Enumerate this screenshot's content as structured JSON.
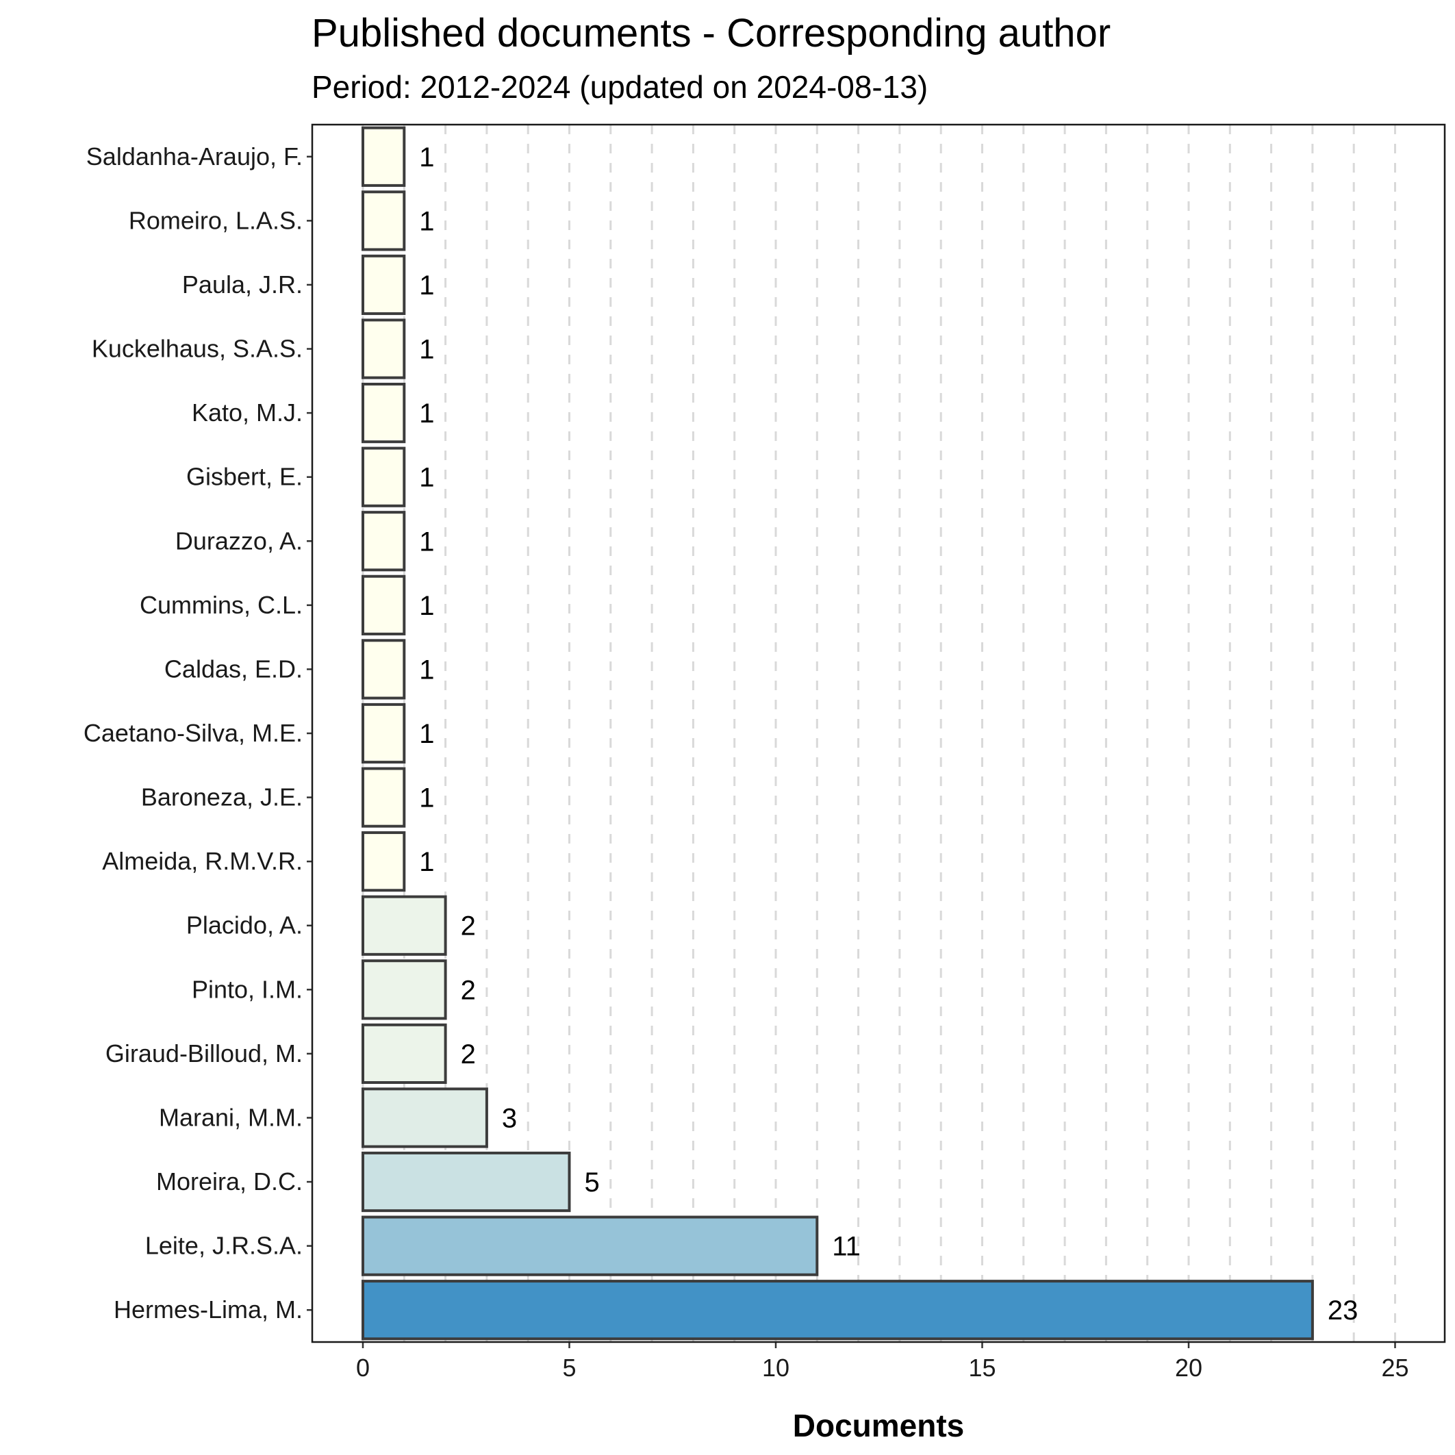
{
  "chart_data": {
    "type": "bar",
    "orientation": "horizontal",
    "title": "Published documents - Corresponding author",
    "subtitle": "Period: 2012-2024 (updated on 2024-08-13)",
    "xlabel": "Documents",
    "ylabel": "",
    "xlim": [
      -1.2,
      26.2
    ],
    "x_ticks": [
      0,
      5,
      10,
      15,
      20,
      25
    ],
    "grid": "vertical dashed at every integer",
    "categories": [
      "Saldanha-Araujo, F.",
      "Romeiro, L.A.S.",
      "Paula, J.R.",
      "Kuckelhaus, S.A.S.",
      "Kato, M.J.",
      "Gisbert, E.",
      "Durazzo, A.",
      "Cummins, C.L.",
      "Caldas, E.D.",
      "Caetano-Silva, M.E.",
      "Baroneza, J.E.",
      "Almeida, R.M.V.R.",
      "Placido, A.",
      "Pinto, I.M.",
      "Giraud-Billoud, M.",
      "Marani, M.M.",
      "Moreira, D.C.",
      "Leite, J.R.S.A.",
      "Hermes-Lima, M."
    ],
    "values": [
      1,
      1,
      1,
      1,
      1,
      1,
      1,
      1,
      1,
      1,
      1,
      1,
      2,
      2,
      2,
      3,
      5,
      11,
      23
    ],
    "value_labels": [
      "1",
      "1",
      "1",
      "1",
      "1",
      "1",
      "1",
      "1",
      "1",
      "1",
      "1",
      "1",
      "2",
      "2",
      "2",
      "3",
      "5",
      "11",
      "23"
    ],
    "colors": {
      "low": "#ffffee",
      "high": "#4292c6",
      "bar_outline": "#3c3c3c",
      "grid": "#d9d9d9",
      "panel_border": "#1a1a1a"
    }
  }
}
